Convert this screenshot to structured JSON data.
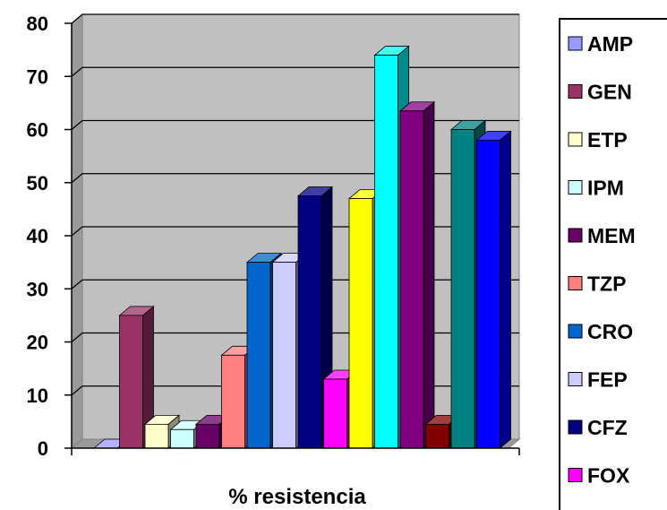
{
  "chart_data": {
    "type": "bar",
    "title": "",
    "xlabel": "% resistencia",
    "ylabel": "",
    "ylim": [
      0,
      80
    ],
    "yticks": [
      0,
      10,
      20,
      30,
      40,
      50,
      60,
      70,
      80
    ],
    "grid": true,
    "legend_position": "right",
    "series": [
      {
        "name": "AMP",
        "value": 0,
        "color": "#9999ff"
      },
      {
        "name": "GEN",
        "value": 25,
        "color": "#993366"
      },
      {
        "name": "ETP",
        "value": 4.5,
        "color": "#ffffcc"
      },
      {
        "name": "IPM",
        "value": 3.5,
        "color": "#ccffff"
      },
      {
        "name": "MEM",
        "value": 4.5,
        "color": "#660066"
      },
      {
        "name": "TZP",
        "value": 17.5,
        "color": "#ff8080"
      },
      {
        "name": "CRO",
        "value": 35,
        "color": "#0066cc"
      },
      {
        "name": "FEP",
        "value": 35,
        "color": "#ccccff"
      },
      {
        "name": "CFZ",
        "value": 47.5,
        "color": "#000080"
      },
      {
        "name": "FOX",
        "value": 13,
        "color": "#ff00ff"
      },
      {
        "name": "",
        "value": 47,
        "color": "#ffff00"
      },
      {
        "name": "",
        "value": 74,
        "color": "#00ffff"
      },
      {
        "name": "",
        "value": 63.5,
        "color": "#800080"
      },
      {
        "name": "",
        "value": 4.5,
        "color": "#800000"
      },
      {
        "name": "",
        "value": 60,
        "color": "#008080"
      },
      {
        "name": "",
        "value": 58,
        "color": "#0000ff"
      }
    ]
  }
}
